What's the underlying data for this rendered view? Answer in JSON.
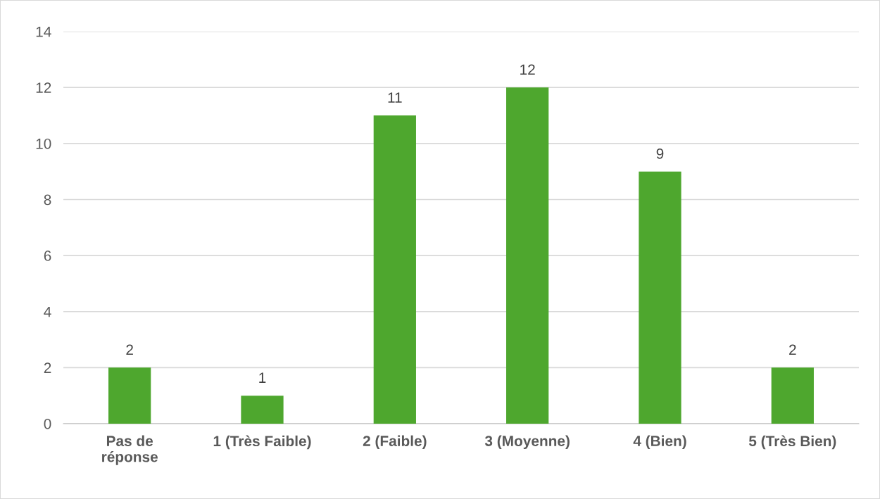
{
  "chart_data": {
    "type": "bar",
    "categories": [
      "Pas de\nréponse",
      "1 (Très Faible)",
      "2 (Faible)",
      "3 (Moyenne)",
      "4 (Bien)",
      "5 (Très Bien)"
    ],
    "values": [
      2,
      1,
      11,
      12,
      9,
      2
    ],
    "color": "#4ea72e",
    "ylim": [
      0,
      14
    ],
    "yticks": [
      0,
      2,
      4,
      6,
      8,
      10,
      12,
      14
    ],
    "grid": "y",
    "data_labels": true
  }
}
